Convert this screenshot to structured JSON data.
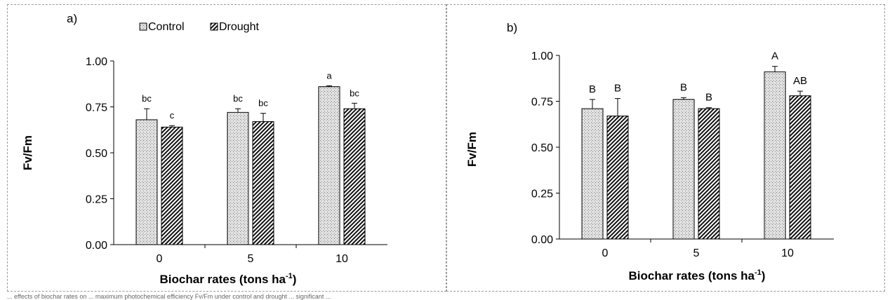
{
  "chart_data": [
    {
      "type": "bar",
      "panel_label": "a)",
      "categories": [
        "0",
        "5",
        "10"
      ],
      "series": [
        {
          "name": "Control",
          "values": [
            0.68,
            0.72,
            0.86
          ],
          "errors": [
            0.06,
            0.02,
            0.005
          ],
          "labels": [
            "bc",
            "bc",
            "a"
          ]
        },
        {
          "name": "Drought",
          "values": [
            0.64,
            0.67,
            0.74
          ],
          "errors": [
            0.008,
            0.045,
            0.03
          ],
          "labels": [
            "c",
            "bc",
            "bc"
          ]
        }
      ],
      "xlabel": "Biochar rates (tons ha",
      "xlabel_sup": "-1",
      "xlabel_tail": ")",
      "ylabel": "Fv/Fm",
      "ylim": [
        0,
        1.0
      ],
      "yticks": [
        "0.00",
        "0.25",
        "0.50",
        "0.75",
        "1.00"
      ],
      "legend": "top-center",
      "grid": false
    },
    {
      "type": "bar",
      "panel_label": "b)",
      "categories": [
        "0",
        "5",
        "10"
      ],
      "series": [
        {
          "values": [
            0.71,
            0.76,
            0.91
          ],
          "errors": [
            0.05,
            0.01,
            0.03
          ],
          "labels": [
            "B",
            "B",
            "A"
          ]
        },
        {
          "values": [
            0.67,
            0.71,
            0.78
          ],
          "errors": [
            0.095,
            0.005,
            0.025
          ],
          "labels": [
            "B",
            "B",
            "AB"
          ]
        }
      ],
      "xlabel": "Biochar rates (tons ha",
      "xlabel_sup": "-1",
      "xlabel_tail": ")",
      "ylabel": "Fv/Fm",
      "ylim": [
        0,
        1.0
      ],
      "yticks": [
        "0.00",
        "0.25",
        "0.50",
        "0.75",
        "1.00"
      ],
      "grid": false
    }
  ],
  "legend": {
    "control_label": "Control",
    "drought_label": "Drought"
  },
  "colors": {
    "bar_edge": "#000000",
    "background": "#ffffff"
  },
  "caption_fragment": "... effects of biochar rates on ... maximum photochemical efficiency Fv/Fm under control and drought ... significant ..."
}
